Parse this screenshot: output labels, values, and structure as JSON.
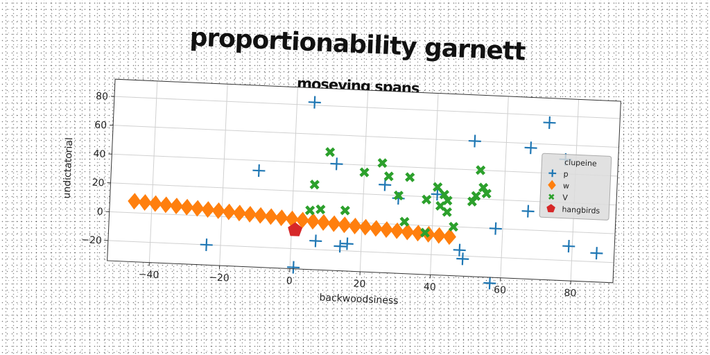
{
  "chart_data": {
    "type": "scatter",
    "title": "proportionability garnett",
    "subtitle": "moseying spans",
    "xlabel": "backwoodsiness",
    "ylabel": "undictatorial",
    "xlim": [
      -52,
      92
    ],
    "ylim": [
      -34,
      92
    ],
    "xticks": [
      -40,
      -20,
      0,
      20,
      40,
      60,
      80
    ],
    "yticks": [
      -20,
      0,
      20,
      40,
      60,
      80
    ],
    "grid": true,
    "legend": {
      "title": "clupeine",
      "placement": "right"
    },
    "series": [
      {
        "name": "p",
        "marker": "plus",
        "color": "#1f77b4",
        "x": [
          5,
          51,
          72,
          67,
          77,
          -10,
          12,
          26,
          30,
          41,
          -24,
          1,
          7,
          14,
          16,
          49,
          57,
          67,
          79,
          87,
          48,
          58
        ],
        "y": [
          82,
          60,
          75,
          57,
          50,
          33,
          40,
          27,
          18,
          22,
          -20,
          -33,
          -14,
          -17,
          -15,
          -22,
          -38,
          13,
          -10,
          -14,
          -16,
          0
        ]
      },
      {
        "name": "w",
        "marker": "diamond",
        "color": "#ff7f0e",
        "x": [
          -45,
          -42,
          -39,
          -36,
          -33,
          -30,
          -27,
          -24,
          -21,
          -18,
          -15,
          -12,
          -9,
          -6,
          -3,
          0,
          3,
          6,
          9,
          12,
          15,
          18,
          21,
          24,
          27,
          30,
          33,
          36,
          39,
          42,
          45
        ],
        "y": [
          8,
          7.5,
          7,
          6.5,
          6,
          5.5,
          5,
          4.5,
          4,
          3.5,
          3,
          2.5,
          2,
          1.5,
          1,
          0.5,
          0,
          -0.5,
          -1,
          -1.5,
          -2,
          -2.5,
          -3,
          -3.5,
          -4,
          -4.5,
          -5,
          -5.5,
          -6,
          -6.5,
          -7
        ]
      },
      {
        "name": "V",
        "marker": "x",
        "color": "#2ca02c",
        "x": [
          10,
          6,
          5,
          8,
          15,
          20,
          25,
          27,
          30,
          33,
          32,
          38,
          41,
          43,
          44,
          42,
          44,
          46,
          53,
          54,
          52,
          51,
          55,
          38
        ],
        "y": [
          48,
          25,
          7,
          8,
          8,
          35,
          42,
          33,
          20,
          33,
          2,
          18,
          27,
          22,
          18,
          14,
          10,
          0,
          40,
          28,
          22,
          18,
          24,
          -5
        ]
      },
      {
        "name": "hangbirds",
        "marker": "pentagon",
        "color": "#d62728",
        "x": [
          1
        ],
        "y": [
          -7
        ]
      }
    ]
  }
}
